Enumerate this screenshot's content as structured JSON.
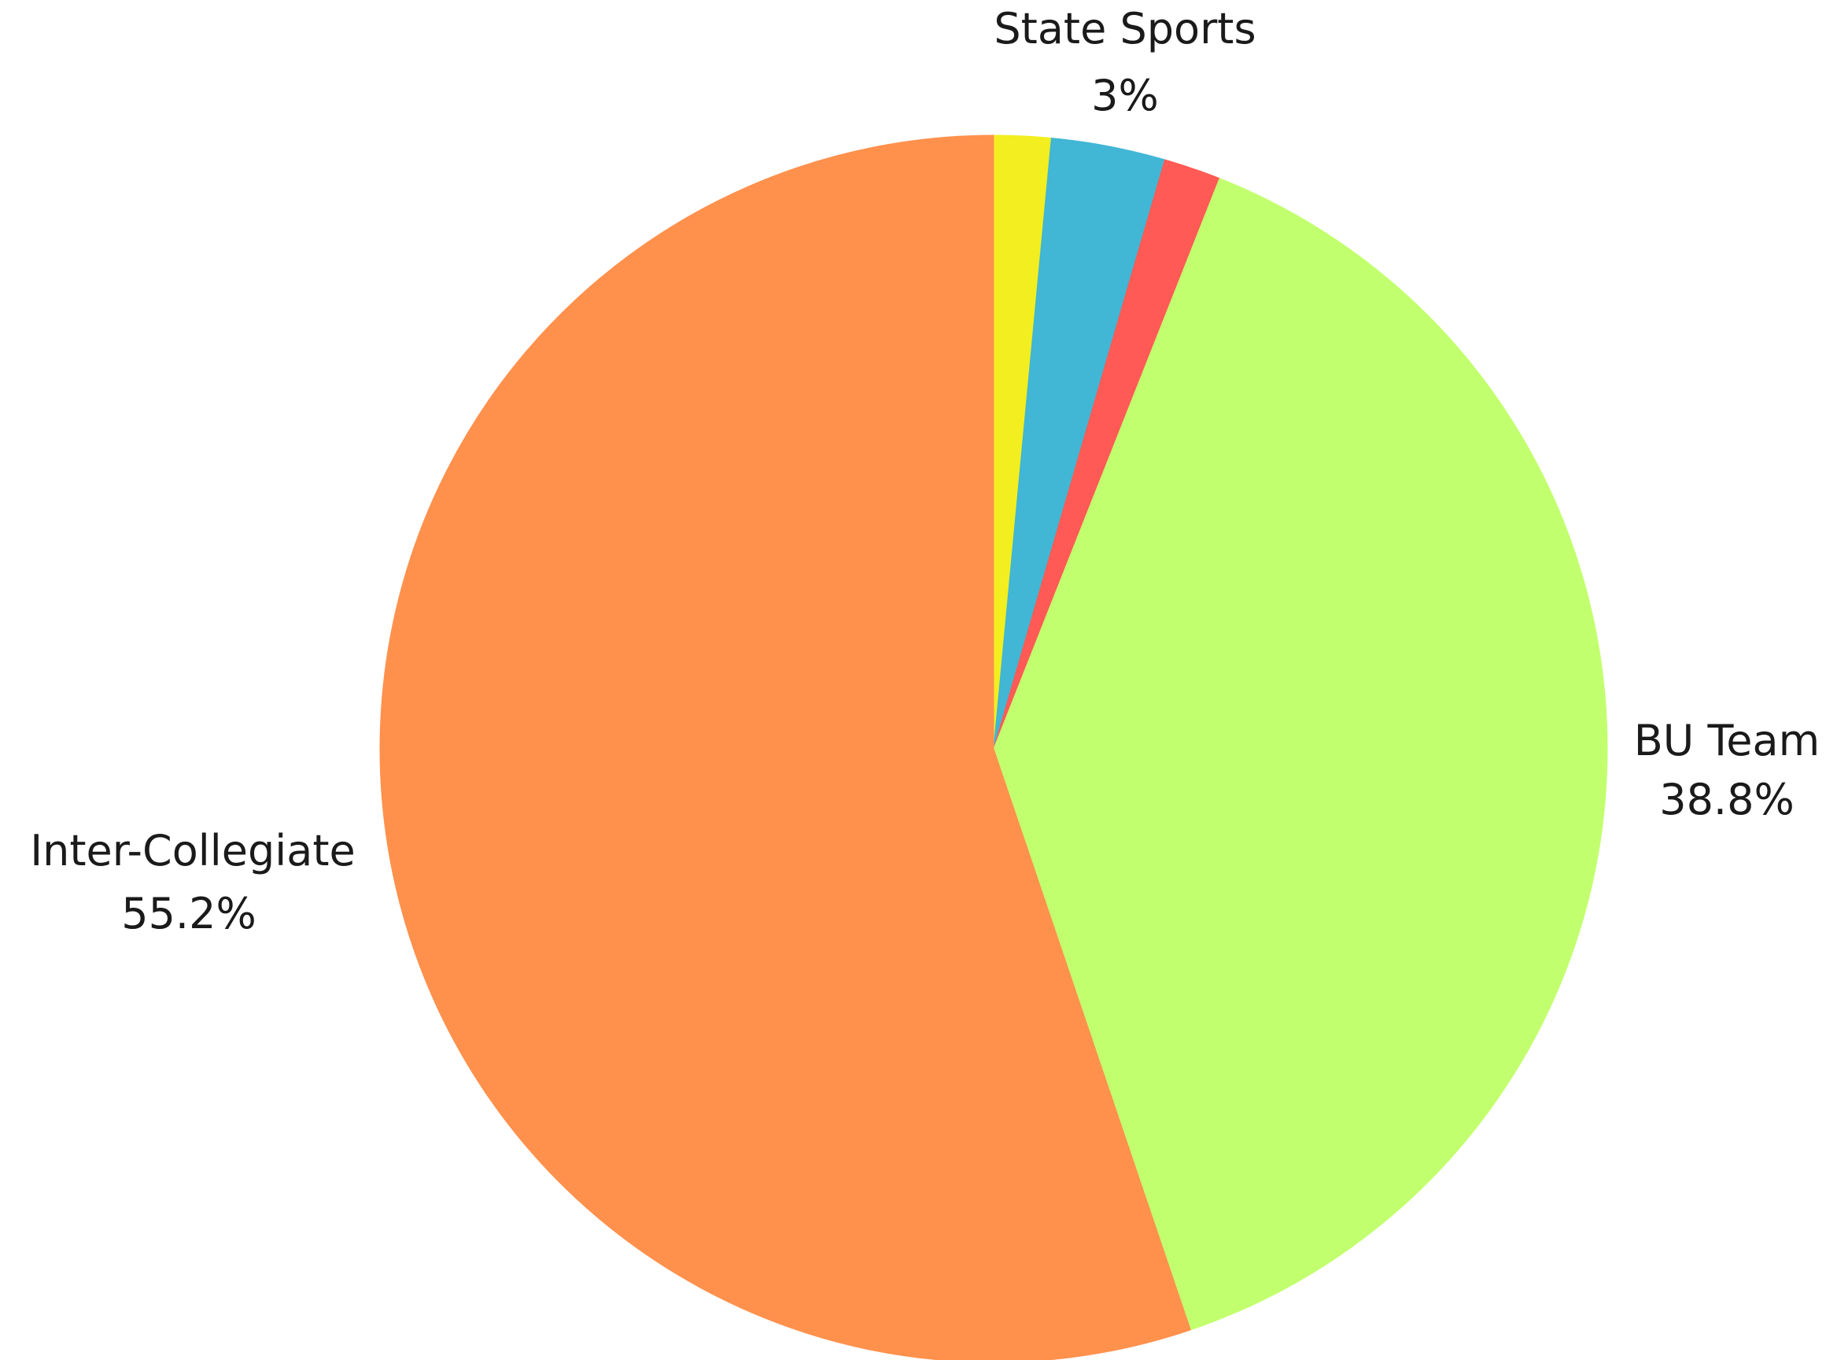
{
  "chart_data": {
    "type": "pie",
    "start_angle": "top (12 o'clock)",
    "direction": "clockwise",
    "legend": "none",
    "slices": [
      {
        "key": "yellow",
        "name": "",
        "value": 1.5,
        "color": "#f2ee1f",
        "label": "",
        "value_label": ""
      },
      {
        "key": "state-sports",
        "name": "State Sports",
        "value": 3,
        "color": "#41b6d5",
        "label": "State Sports",
        "value_label": "3%"
      },
      {
        "key": "red",
        "name": "",
        "value": 1.5,
        "color": "#ff5a55",
        "label": "",
        "value_label": ""
      },
      {
        "key": "bu-team",
        "name": "BU Team",
        "value": 38.8,
        "color": "#c2ff6e",
        "label": "BU Team",
        "value_label": "38.8%"
      },
      {
        "key": "inter-collegiate",
        "name": "Inter-Collegiate",
        "value": 55.2,
        "color": "#ff914d",
        "label": "Inter-Collegiate",
        "value_label": "55.2%"
      }
    ]
  }
}
